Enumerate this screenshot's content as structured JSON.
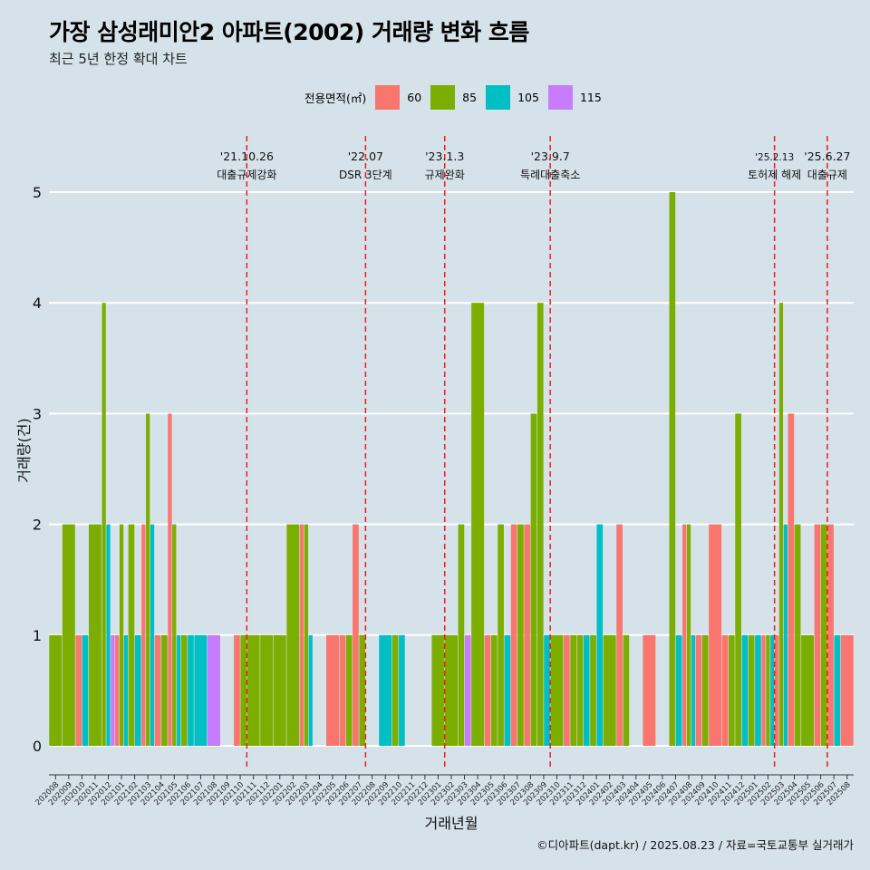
{
  "title": "가장 삼성래미안2 아파트(2002) 거래량 변화 흐름",
  "subtitle": "최근 5년 한정 확대 차트",
  "caption": "©디아파트(dapt.kr) / 2025.08.23 / 자료=국토교통부 실거래가",
  "legend": {
    "title": "전용면적(㎡)",
    "items": [
      {
        "label": "60",
        "color": "#f8766d"
      },
      {
        "label": "85",
        "color": "#7cae00"
      },
      {
        "label": "105",
        "color": "#00bfc4"
      },
      {
        "label": "115",
        "color": "#c77cff"
      }
    ]
  },
  "chart_data": {
    "type": "bar",
    "xlabel": "거래년월",
    "ylabel": "거래량(건)",
    "ylim": [
      0,
      5
    ],
    "yticks": [
      0,
      1,
      2,
      3,
      4,
      5
    ],
    "months": [
      "202008",
      "202009",
      "202010",
      "202011",
      "202012",
      "202101",
      "202102",
      "202103",
      "202104",
      "202105",
      "202106",
      "202107",
      "202108",
      "202109",
      "202110",
      "202111",
      "202112",
      "202201",
      "202202",
      "202203",
      "202204",
      "202205",
      "202206",
      "202207",
      "202208",
      "202209",
      "202210",
      "202211",
      "202212",
      "202301",
      "202302",
      "202303",
      "202304",
      "202305",
      "202306",
      "202307",
      "202308",
      "202309",
      "202310",
      "202311",
      "202312",
      "202401",
      "202402",
      "202403",
      "202404",
      "202405",
      "202406",
      "202407",
      "202408",
      "202409",
      "202410",
      "202411",
      "202412",
      "202501",
      "202502",
      "202503",
      "202504",
      "202505",
      "202506",
      "202507",
      "202508"
    ],
    "series": [
      {
        "name": "60",
        "color": "#f8766d",
        "values": [
          0,
          0,
          1,
          0,
          0,
          1,
          0,
          2,
          1,
          3,
          0,
          0,
          0,
          0,
          1,
          0,
          0,
          0,
          0,
          2,
          0,
          1,
          1,
          2,
          0,
          0,
          0,
          0,
          0,
          0,
          0,
          0,
          0,
          1,
          0,
          2,
          2,
          0,
          0,
          1,
          0,
          0,
          0,
          2,
          0,
          1,
          0,
          0,
          2,
          1,
          2,
          1,
          0,
          0,
          1,
          1,
          3,
          0,
          2,
          2,
          1
        ]
      },
      {
        "name": "85",
        "color": "#7cae00",
        "values": [
          1,
          2,
          0,
          2,
          4,
          2,
          2,
          3,
          1,
          2,
          1,
          0,
          0,
          0,
          1,
          1,
          1,
          1,
          2,
          2,
          0,
          0,
          1,
          1,
          0,
          0,
          1,
          0,
          0,
          1,
          1,
          2,
          4,
          1,
          2,
          2,
          3,
          4,
          1,
          1,
          1,
          1,
          1,
          1,
          0,
          0,
          0,
          5,
          2,
          1,
          0,
          1,
          3,
          1,
          1,
          4,
          2,
          1,
          2,
          0,
          0
        ]
      },
      {
        "name": "105",
        "color": "#00bfc4",
        "values": [
          0,
          0,
          1,
          0,
          2,
          1,
          1,
          2,
          0,
          1,
          1,
          1,
          0,
          0,
          0,
          0,
          0,
          0,
          0,
          1,
          0,
          0,
          0,
          0,
          0,
          1,
          1,
          0,
          0,
          0,
          0,
          0,
          0,
          0,
          1,
          0,
          0,
          1,
          0,
          0,
          1,
          2,
          0,
          0,
          0,
          0,
          0,
          1,
          1,
          0,
          0,
          0,
          1,
          1,
          1,
          2,
          0,
          0,
          0,
          1,
          0
        ]
      },
      {
        "name": "115",
        "color": "#c77cff",
        "values": [
          0,
          0,
          0,
          0,
          1,
          0,
          0,
          0,
          0,
          0,
          0,
          0,
          1,
          0,
          0,
          0,
          0,
          0,
          0,
          0,
          0,
          0,
          0,
          0,
          0,
          0,
          0,
          0,
          0,
          0,
          0,
          1,
          0,
          0,
          0,
          0,
          0,
          0,
          0,
          0,
          0,
          0,
          0,
          0,
          0,
          0,
          0,
          0,
          0,
          0,
          0,
          0,
          0,
          0,
          0,
          0,
          0,
          0,
          0,
          0,
          0
        ]
      }
    ],
    "events": [
      {
        "date": "'21.10.26",
        "label": "대출규제강화",
        "month": "202111"
      },
      {
        "date": "'22.07",
        "label": "DSR 3단계",
        "month": "202208"
      },
      {
        "date": "'23.1.3",
        "label": "규제완화",
        "month": "202302"
      },
      {
        "date": "'23.9.7",
        "label": "특례대출축소",
        "month": "202310"
      },
      {
        "date": "'25.2.13",
        "label": "토허제 해제",
        "month": "202503"
      },
      {
        "date": "'25.6.27",
        "label": "대출규제",
        "month": "202507"
      }
    ],
    "grid": true,
    "legend_position": "top"
  }
}
